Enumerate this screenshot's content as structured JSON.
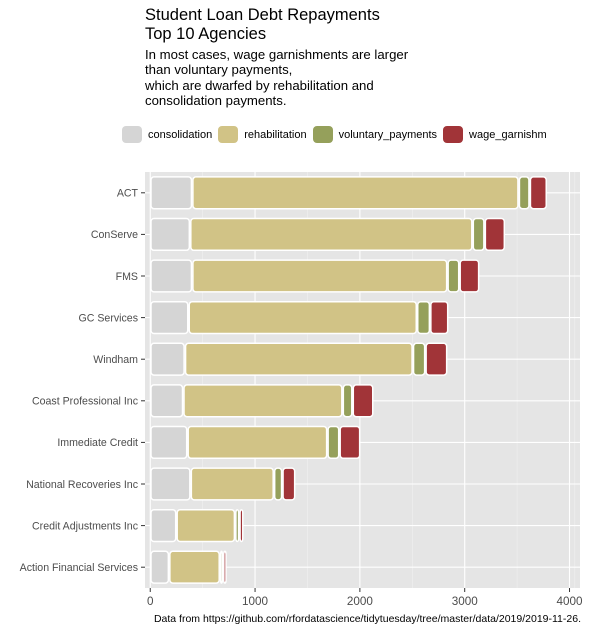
{
  "chart_data": {
    "type": "bar",
    "orientation": "horizontal",
    "stacked": true,
    "title": "Student Loan Debt Repayments\nTop 10 Agencies",
    "subtitle": "In most cases, wage garnishments are larger\nthan voluntary payments,\nwhich are dwarfed by rehabilitation and\nconsolidation payments.",
    "caption": "Data from https://github.com/rfordatascience/tidytuesday/tree/master/data/2019/2019-11-26.",
    "legend_position": "top",
    "grid": true,
    "xlim": [
      -50,
      4100
    ],
    "xticks": [
      0,
      1000,
      2000,
      3000,
      4000
    ],
    "xtick_labels": [
      "0",
      "1000",
      "2000",
      "3000",
      "4000"
    ],
    "categories": [
      "ACT",
      "ConServe",
      "FMS",
      "GC Services",
      "Windham",
      "Coast Professional Inc",
      "Immediate Credit",
      "National Recoveries Inc",
      "Credit Adjustments Inc",
      "Action Financial Services"
    ],
    "series": [
      {
        "name": "consolidation",
        "color": "#d5d5d5",
        "values": [
          400,
          380,
          400,
          365,
          330,
          315,
          355,
          385,
          250,
          180
        ]
      },
      {
        "name": "rehabilitation",
        "color": "#d1c386",
        "values": [
          3115,
          2695,
          2435,
          2180,
          2175,
          1520,
          1335,
          795,
          560,
          485
        ]
      },
      {
        "name": "voluntary_payments",
        "color": "#95a05b",
        "values": [
          105,
          115,
          115,
          125,
          120,
          95,
          115,
          80,
          40,
          30
        ]
      },
      {
        "name": "wage_garnishm",
        "color": "#a13438",
        "values": [
          165,
          195,
          190,
          175,
          210,
          200,
          200,
          125,
          40,
          35
        ]
      }
    ]
  }
}
